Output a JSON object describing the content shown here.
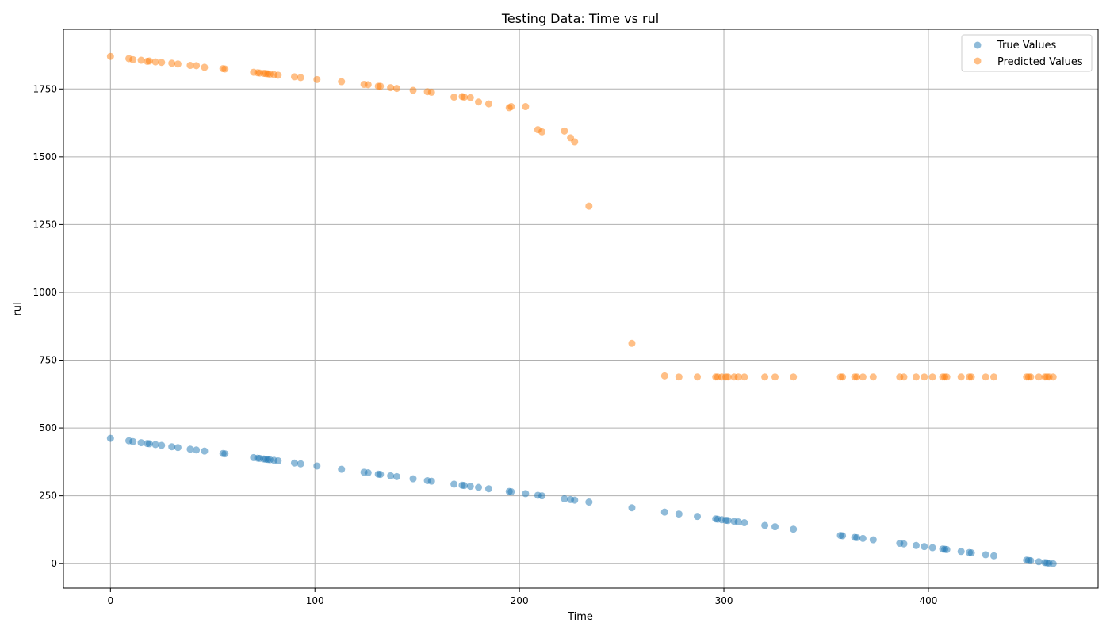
{
  "chart_data": {
    "type": "scatter",
    "title": "Testing Data: Time vs rul",
    "xlabel": "Time",
    "ylabel": "rul",
    "xlim": [
      -23,
      483
    ],
    "ylim": [
      -90,
      1970
    ],
    "xticks": [
      0,
      100,
      200,
      300,
      400
    ],
    "yticks": [
      0,
      250,
      500,
      750,
      1000,
      1250,
      1500,
      1750
    ],
    "grid": true,
    "legend_position": "top-right",
    "series": [
      {
        "name": "True Values",
        "color": "#1f77b4",
        "x": [
          0,
          9,
          11,
          15,
          18,
          19,
          22,
          25,
          30,
          33,
          39,
          42,
          46,
          55,
          56,
          70,
          72,
          73,
          75,
          76,
          77,
          78,
          80,
          82,
          90,
          93,
          101,
          113,
          124,
          126,
          131,
          132,
          137,
          140,
          148,
          155,
          157,
          168,
          172,
          173,
          176,
          180,
          185,
          195,
          196,
          203,
          209,
          211,
          222,
          225,
          227,
          234,
          255,
          271,
          278,
          287,
          296,
          297,
          299,
          301,
          302,
          305,
          307,
          310,
          320,
          325,
          334,
          357,
          358,
          364,
          365,
          368,
          373,
          386,
          388,
          394,
          398,
          402,
          407,
          408,
          409,
          416,
          420,
          421,
          428,
          432,
          448,
          449,
          450,
          454,
          457,
          458,
          459,
          461
        ],
        "y": [
          462,
          453,
          450,
          446,
          443,
          442,
          439,
          436,
          431,
          428,
          422,
          419,
          415,
          406,
          405,
          391,
          389,
          388,
          386,
          385,
          384,
          383,
          381,
          379,
          371,
          368,
          360,
          348,
          337,
          335,
          330,
          329,
          324,
          321,
          313,
          306,
          304,
          293,
          289,
          288,
          285,
          281,
          276,
          266,
          265,
          258,
          252,
          250,
          239,
          236,
          234,
          227,
          206,
          190,
          183,
          174,
          165,
          164,
          162,
          160,
          159,
          156,
          154,
          151,
          141,
          136,
          127,
          104,
          103,
          97,
          96,
          93,
          88,
          75,
          73,
          67,
          63,
          59,
          54,
          53,
          52,
          45,
          41,
          40,
          33,
          29,
          13,
          12,
          11,
          7,
          4,
          3,
          2,
          0
        ]
      },
      {
        "name": "Predicted Values",
        "color": "#ff7f0e",
        "x": [
          0,
          9,
          11,
          15,
          18,
          19,
          22,
          25,
          30,
          33,
          39,
          42,
          46,
          55,
          56,
          70,
          72,
          73,
          75,
          76,
          77,
          78,
          80,
          82,
          90,
          93,
          101,
          113,
          124,
          126,
          131,
          132,
          137,
          140,
          148,
          155,
          157,
          168,
          172,
          173,
          176,
          180,
          185,
          195,
          196,
          203,
          209,
          211,
          222,
          225,
          227,
          234,
          255,
          271,
          278,
          287,
          296,
          297,
          299,
          301,
          302,
          305,
          307,
          310,
          320,
          325,
          334,
          357,
          358,
          364,
          365,
          368,
          373,
          386,
          388,
          394,
          398,
          402,
          407,
          408,
          409,
          416,
          420,
          421,
          428,
          432,
          448,
          449,
          450,
          454,
          457,
          458,
          459,
          461
        ],
        "y": [
          1870,
          1862,
          1858,
          1856,
          1852,
          1853,
          1850,
          1848,
          1845,
          1842,
          1837,
          1836,
          1830,
          1825,
          1824,
          1812,
          1810,
          1809,
          1808,
          1807,
          1806,
          1805,
          1803,
          1801,
          1795,
          1792,
          1785,
          1777,
          1767,
          1766,
          1760,
          1760,
          1755,
          1752,
          1745,
          1740,
          1738,
          1720,
          1722,
          1720,
          1718,
          1702,
          1695,
          1681,
          1685,
          1685,
          1600,
          1592,
          1595,
          1570,
          1555,
          1318,
          812,
          692,
          688,
          688,
          688,
          688,
          688,
          688,
          688,
          688,
          688,
          688,
          688,
          688,
          688,
          688,
          688,
          688,
          688,
          688,
          688,
          688,
          688,
          688,
          688,
          688,
          688,
          688,
          688,
          688,
          688,
          688,
          688,
          688,
          688,
          688,
          688,
          688,
          688,
          688,
          688,
          688
        ]
      }
    ]
  }
}
